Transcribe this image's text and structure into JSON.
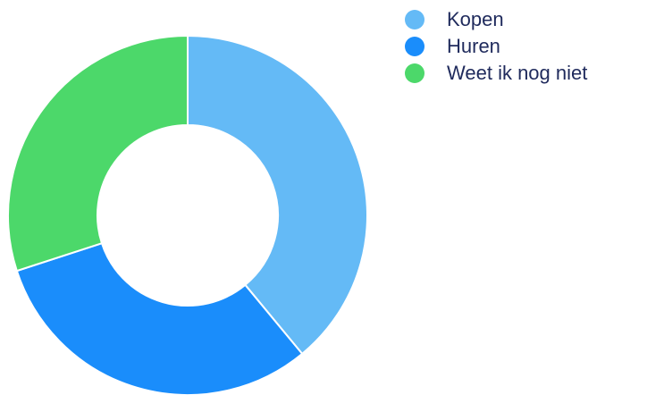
{
  "chart_data": {
    "type": "donut",
    "categories": [
      "Kopen",
      "Huren",
      "Weet ik nog niet"
    ],
    "values": [
      39,
      31,
      30
    ],
    "colors": [
      "#64baf6",
      "#1a8dfb",
      "#4cd86a"
    ],
    "legend": "top-right"
  }
}
